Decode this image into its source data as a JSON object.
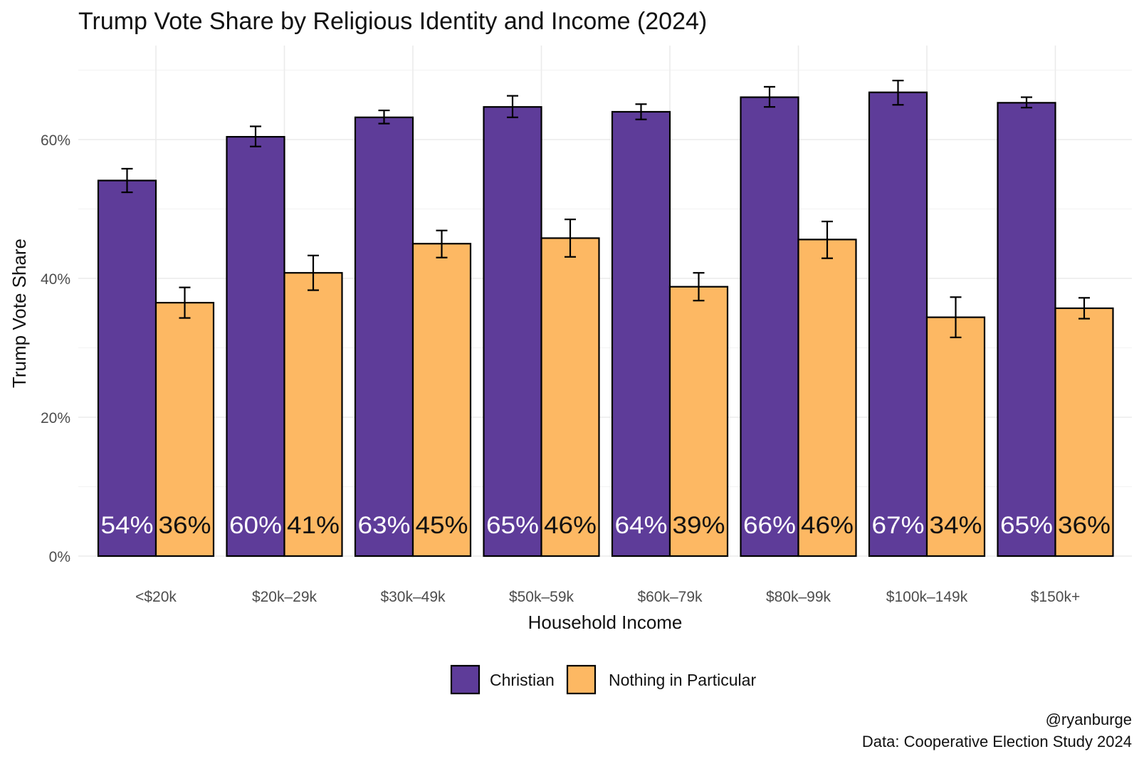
{
  "chart_data": {
    "type": "bar",
    "title": "Trump Vote Share by Religious Identity and Income (2024)",
    "xlabel": "Household Income",
    "ylabel": "Trump Vote Share",
    "ylim": [
      0,
      0.7
    ],
    "y_ticks": [
      0,
      0.2,
      0.4,
      0.6
    ],
    "y_tick_labels": [
      "0%",
      "20%",
      "40%",
      "60%"
    ],
    "categories": [
      "<$20k",
      "$20k–29k",
      "$30k–49k",
      "$50k–59k",
      "$60k–79k",
      "$80k–99k",
      "$100k–149k",
      "$150k+"
    ],
    "series": [
      {
        "name": "Christian",
        "color": "#5e3c99",
        "label_color": "#ffffff",
        "values": [
          0.541,
          0.604,
          0.632,
          0.647,
          0.64,
          0.661,
          0.668,
          0.653
        ],
        "ci_low": [
          0.524,
          0.59,
          0.623,
          0.632,
          0.629,
          0.647,
          0.65,
          0.646
        ],
        "ci_high": [
          0.558,
          0.619,
          0.642,
          0.663,
          0.651,
          0.676,
          0.685,
          0.661
        ],
        "labels": [
          "54%",
          "60%",
          "63%",
          "65%",
          "64%",
          "66%",
          "67%",
          "65%"
        ]
      },
      {
        "name": "Nothing in Particular",
        "color": "#fdb863",
        "label_color": "#111111",
        "values": [
          0.365,
          0.408,
          0.45,
          0.458,
          0.388,
          0.456,
          0.344,
          0.357
        ],
        "ci_low": [
          0.343,
          0.383,
          0.43,
          0.431,
          0.368,
          0.429,
          0.315,
          0.342
        ],
        "ci_high": [
          0.387,
          0.433,
          0.469,
          0.485,
          0.408,
          0.482,
          0.373,
          0.372
        ],
        "labels": [
          "36%",
          "41%",
          "45%",
          "46%",
          "39%",
          "46%",
          "34%",
          "36%"
        ]
      }
    ],
    "legend_position": "bottom",
    "grid": true
  },
  "caption": {
    "line1": "@ryanburge",
    "line2": "Data: Cooperative Election Study 2024"
  }
}
